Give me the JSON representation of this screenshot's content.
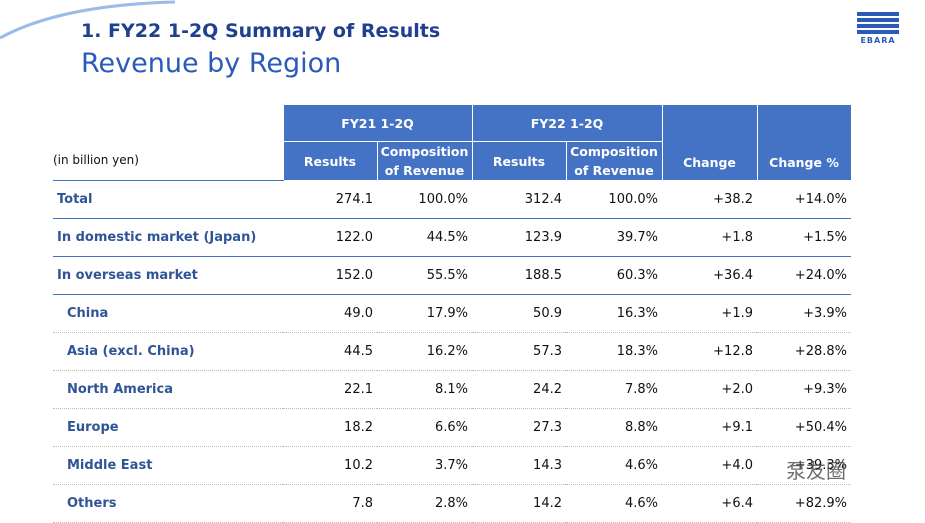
{
  "header": {
    "title": "1. FY22 1-2Q Summary of Results",
    "subtitle": "Revenue by Region",
    "logo": "EBARA"
  },
  "table": {
    "unit": "(in billion yen)",
    "groups": [
      "FY21 1-2Q",
      "FY22 1-2Q",
      "Change",
      "Change %"
    ],
    "columns": [
      [
        "Results",
        "Composition",
        "of Revenue"
      ],
      [
        "Results",
        "Composition",
        "of Revenue"
      ]
    ],
    "rows": [
      [
        "Total",
        "274.1",
        "100.0%",
        "312.4",
        "100.0%",
        "+38.2",
        "+14.0%"
      ],
      [
        "In domestic market (Japan)",
        "122.0",
        "44.5%",
        "123.9",
        "39.7%",
        "+1.8",
        "+1.5%"
      ],
      [
        "In overseas market",
        "152.0",
        "55.5%",
        "188.5",
        "60.3%",
        "+36.4",
        "+24.0%"
      ],
      [
        "China",
        "49.0",
        "17.9%",
        "50.9",
        "16.3%",
        "+1.9",
        "+3.9%"
      ],
      [
        "Asia (excl. China)",
        "44.5",
        "16.2%",
        "57.3",
        "18.3%",
        "+12.8",
        "+28.8%"
      ],
      [
        "North America",
        "22.1",
        "8.1%",
        "24.2",
        "7.8%",
        "+2.0",
        "+9.3%"
      ],
      [
        "Europe",
        "18.2",
        "6.6%",
        "27.3",
        "8.8%",
        "+9.1",
        "+50.4%"
      ],
      [
        "Middle East",
        "10.2",
        "3.7%",
        "14.3",
        "4.6%",
        "+4.0",
        "+39.3%"
      ],
      [
        "Others",
        "7.8",
        "2.8%",
        "14.2",
        "4.6%",
        "+6.4",
        "+82.9%"
      ]
    ]
  },
  "watermark": "泵友圈"
}
